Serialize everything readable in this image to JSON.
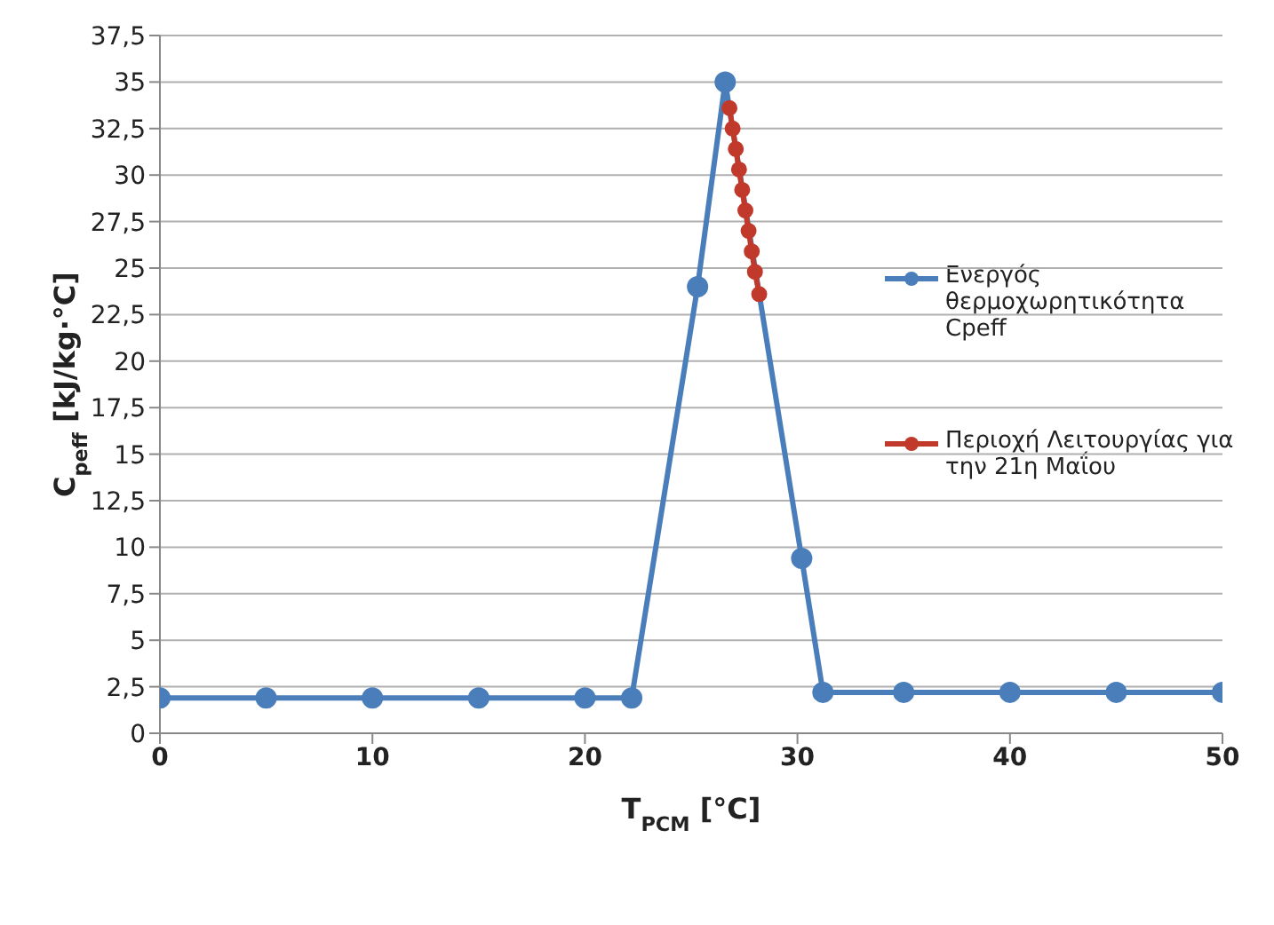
{
  "chart_data": {
    "type": "line",
    "xlabel": "T$_{PCM}$ [°C]",
    "ylabel": "C$_{peff}$ [kJ/kg·°C]",
    "xlim": [
      0,
      50
    ],
    "xticks": [
      0,
      10,
      20,
      30,
      40,
      50
    ],
    "ylim": [
      0,
      37.5
    ],
    "yticks": [
      0,
      {
        "value": 2.5,
        "label": "2,5"
      },
      5,
      {
        "value": 7.5,
        "label": "7,5"
      },
      10,
      {
        "value": 12.5,
        "label": "12,5"
      },
      15,
      {
        "value": 17.5,
        "label": "17,5"
      },
      20,
      {
        "value": 22.5,
        "label": "22,5"
      },
      25,
      {
        "value": 27.5,
        "label": "27,5"
      },
      30,
      {
        "value": 32.5,
        "label": "32,5"
      },
      35,
      {
        "value": 37.5,
        "label": "37,5"
      }
    ],
    "grid": "y",
    "legend": "right",
    "marker": "circle",
    "line_style": "solid",
    "series": [
      {
        "name": "Ενεργός θερμοχωρητικότητα Cpeff",
        "color": "#4a7ebb",
        "x": [
          0,
          5,
          10,
          15,
          20,
          22.2,
          25.3,
          26.6,
          30.2,
          31.2,
          35,
          40,
          45,
          50
        ],
        "values": [
          1.9,
          1.9,
          1.9,
          1.9,
          1.9,
          1.9,
          24,
          35,
          9.4,
          2.2,
          2.2,
          2.2,
          2.2,
          2.2
        ]
      },
      {
        "name": "Περιοχή Λειτουργίας για την 21η Μαΐου",
        "color": "#c0392b",
        "x": [
          26.8,
          26.95,
          27.1,
          27.25,
          27.4,
          27.55,
          27.7,
          27.85,
          28.0,
          28.2
        ],
        "values": [
          33.6,
          32.5,
          31.4,
          30.3,
          29.2,
          28.1,
          27.0,
          25.9,
          24.8,
          23.6
        ]
      }
    ]
  }
}
